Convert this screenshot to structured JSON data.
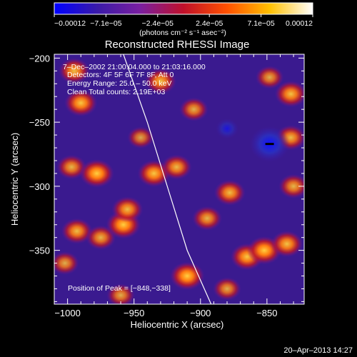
{
  "chart_data": {
    "type": "heatmap",
    "title": "Reconstructed RHESSI Image",
    "xlabel": "Heliocentric X (arcsec)",
    "ylabel": "Heliocentric Y (arcsec)",
    "xlim": [
      -1010,
      -822
    ],
    "ylim": [
      -392,
      -197
    ],
    "x_ticks": [
      -1000,
      -950,
      -900,
      -850
    ],
    "x_tick_labels": [
      "−1000",
      "−950",
      "−900",
      "−850"
    ],
    "y_ticks": [
      -200,
      -250,
      -300,
      -350
    ],
    "y_tick_labels": [
      "−200",
      "−250",
      "−300",
      "−350"
    ],
    "colorbar": {
      "range": [
        -0.00012,
        0.00012
      ],
      "tick_labels": [
        "−0.00012",
        "−7.1e−05",
        "−2.4e−05",
        "2.4e−05",
        "7.1e−05",
        "0.00012"
      ],
      "label": "(photons cm⁻² s⁻¹ asec⁻²)",
      "colors": [
        "#0000ff",
        "#3a1aa8",
        "#7a1fa0",
        "#c0102a",
        "#ff5000",
        "#ffc000",
        "#ffffff"
      ]
    },
    "annotations": {
      "time": "7–Dec–2002 21:00:04.000 to 21:03:16.000",
      "detectors": "Detectors: 4F 5F 6F 7F 8F, Att 0",
      "energy": "Energy Range: 25.0 – 50.0 keV",
      "clean": "Clean    Total counts: 2.19E+03",
      "peak": "Position of Peak = [−848,−338]"
    },
    "limb_curve": [
      [
        -958,
        -197
      ],
      [
        -940,
        -250
      ],
      [
        -925,
        -300
      ],
      [
        -910,
        -350
      ],
      [
        -892,
        -392
      ]
    ],
    "hot_spots": [
      {
        "x": -995,
        "y": -210,
        "v": 0.8
      },
      {
        "x": -990,
        "y": -235,
        "v": 0.9
      },
      {
        "x": -997,
        "y": -285,
        "v": 0.7
      },
      {
        "x": -978,
        "y": -290,
        "v": 1.0
      },
      {
        "x": -993,
        "y": -335,
        "v": 0.8
      },
      {
        "x": -975,
        "y": -340,
        "v": 0.7
      },
      {
        "x": -958,
        "y": -330,
        "v": 1.0
      },
      {
        "x": -955,
        "y": -318,
        "v": 0.8
      },
      {
        "x": -935,
        "y": -290,
        "v": 0.9
      },
      {
        "x": -930,
        "y": -218,
        "v": 0.8
      },
      {
        "x": -918,
        "y": -285,
        "v": 0.75
      },
      {
        "x": -910,
        "y": -370,
        "v": 1.0
      },
      {
        "x": -905,
        "y": -240,
        "v": 0.65
      },
      {
        "x": -895,
        "y": -325,
        "v": 0.7
      },
      {
        "x": -878,
        "y": -305,
        "v": 0.8
      },
      {
        "x": -865,
        "y": -355,
        "v": 0.9
      },
      {
        "x": -852,
        "y": -350,
        "v": 1.0
      },
      {
        "x": -835,
        "y": -345,
        "v": 0.85
      },
      {
        "x": -832,
        "y": -228,
        "v": 0.85
      },
      {
        "x": -832,
        "y": -262,
        "v": 0.75
      },
      {
        "x": -830,
        "y": -300,
        "v": 0.7
      },
      {
        "x": -848,
        "y": -215,
        "v": 0.6
      },
      {
        "x": -960,
        "y": -385,
        "v": 0.6
      },
      {
        "x": -880,
        "y": -380,
        "v": 0.6
      },
      {
        "x": -945,
        "y": -262,
        "v": 0.5
      },
      {
        "x": -1002,
        "y": -360,
        "v": 0.6
      }
    ],
    "cold_spots": [
      {
        "x": -848,
        "y": -267,
        "v": 1.0
      },
      {
        "x": -880,
        "y": -255,
        "v": 0.4
      }
    ]
  },
  "footer": {
    "date": "20–Apr–2013 14:27"
  }
}
